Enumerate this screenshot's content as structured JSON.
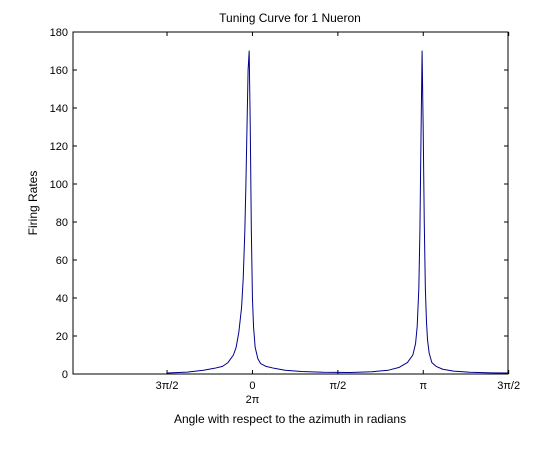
{
  "chart_data": {
    "type": "line",
    "title": "Tuning Curve for 1 Nueron",
    "xlabel": "Angle with respect to the azimuth in radians",
    "ylabel": "Firing Rates",
    "xlim": [
      -3.3,
      4.7
    ],
    "ylim": [
      0,
      180
    ],
    "yticks": [
      0,
      20,
      40,
      60,
      80,
      100,
      120,
      140,
      160,
      180
    ],
    "xticks": [
      {
        "value": -1.5708,
        "label": "3π/2"
      },
      {
        "value": 0,
        "label": "0"
      },
      {
        "value": 1.5708,
        "label": "π/2"
      },
      {
        "value": 3.1416,
        "label": "π"
      },
      {
        "value": 4.7124,
        "label": "3π/2"
      }
    ],
    "xtick_sublabels": [
      {
        "value": 0,
        "label": "2π"
      }
    ],
    "grid": false,
    "line_color": "#00008b",
    "series": [
      {
        "x": [
          -1.57,
          -1.2,
          -0.9,
          -0.7,
          -0.55,
          -0.45,
          -0.35,
          -0.3,
          -0.25,
          -0.2,
          -0.17,
          -0.14,
          -0.12,
          -0.1,
          -0.08,
          -0.06,
          -0.04,
          -0.02,
          0,
          0.02,
          0.05,
          0.1,
          0.15,
          0.25,
          0.4,
          0.6,
          0.9,
          1.3,
          1.8,
          2.2,
          2.5,
          2.7,
          2.85,
          2.95,
          3.0,
          3.03,
          3.06,
          3.08,
          3.1,
          3.12,
          3.14,
          3.16,
          3.18,
          3.2,
          3.22,
          3.25,
          3.3,
          3.38,
          3.5,
          3.7,
          4.0,
          4.4,
          4.7
        ],
        "y": [
          0.5,
          1,
          2,
          3,
          4,
          6,
          10,
          14,
          22,
          35,
          50,
          75,
          100,
          130,
          160,
          170,
          130,
          75,
          40,
          25,
          14,
          8,
          5.5,
          4,
          3,
          2,
          1.3,
          0.9,
          0.8,
          1.2,
          2,
          3.5,
          6,
          10,
          16,
          25,
          45,
          75,
          125,
          170,
          130,
          80,
          45,
          28,
          18,
          11,
          6,
          4,
          2.5,
          1.5,
          0.9,
          0.6,
          0.5
        ]
      }
    ]
  }
}
